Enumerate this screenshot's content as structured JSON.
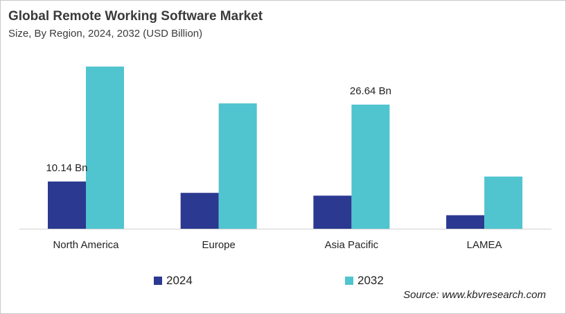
{
  "chart_data": {
    "type": "bar",
    "title": "Global Remote Working Software Market",
    "subtitle": "Size, By Region, 2024, 2032 (USD Billion)",
    "categories": [
      "North America",
      "Europe",
      "Asia Pacific",
      "LAMEA"
    ],
    "series": [
      {
        "name": "2024",
        "color": "#2b3990",
        "values": [
          10.14,
          7.7,
          7.1,
          2.9
        ]
      },
      {
        "name": "2032",
        "color": "#50c4cf",
        "values": [
          34.8,
          26.9,
          26.64,
          11.2
        ]
      }
    ],
    "data_labels": [
      {
        "series": 0,
        "category": 0,
        "text": "10.14 Bn"
      },
      {
        "series": 1,
        "category": 2,
        "text": "26.64 Bn"
      }
    ],
    "ylim": [
      0,
      35.7
    ],
    "grid": false,
    "legend": "bottom",
    "source": "Source: www.kbvresearch.com"
  }
}
